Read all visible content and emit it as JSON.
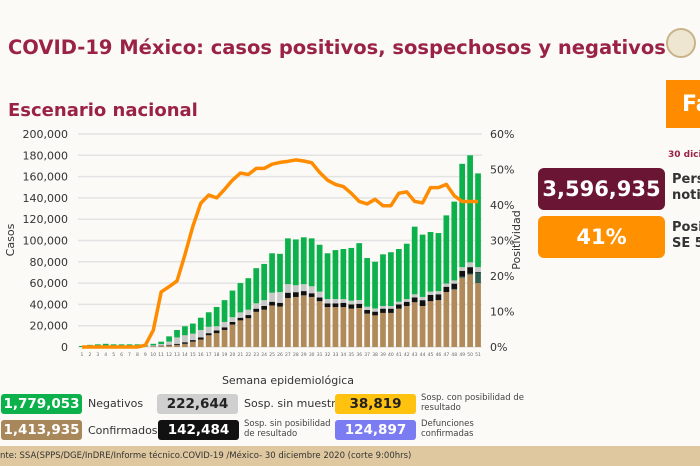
{
  "header": {
    "title": "COVID-19 México: casos positivos, sospechosos y negativos",
    "subtitle": "Escenario nacional",
    "side_box": "Fa",
    "date": "30 dici"
  },
  "kpis": [
    {
      "value": "3,596,935",
      "label1": "Pers",
      "label2": "noti",
      "color": "#6b1535"
    },
    {
      "value": "41%",
      "label1": "Posi",
      "label2": "SE 5",
      "color": "#ff9000"
    }
  ],
  "legend": [
    {
      "value": "1,779,053",
      "label": "Negativos",
      "color": "#0db14b"
    },
    {
      "value": "222,644",
      "label": "Sosp. sin muestra",
      "color": "#cfcfcf"
    },
    {
      "value": "38,819",
      "label": "Sosp. con posibilidad de resultado",
      "color": "#ffc20e"
    },
    {
      "value": "1,413,935",
      "label": "Confirmados",
      "color": "#a8875a"
    },
    {
      "value": "142,484",
      "label": "Sosp. sin posibilidad de resultado",
      "color": "#111111"
    },
    {
      "value": "124,897",
      "label": "Defunciones confirmadas",
      "color": "#7b7cf2"
    }
  ],
  "source": "nte: SSA(SPPS/DGE/InDRE/Informe técnico.COVID-19 /México- 30 diciembre 2020 (corte 9:00hrs)",
  "chart_data": {
    "type": "bar",
    "xlabel": "Semana epidemiológica",
    "ylabel": "Casos",
    "y2label": "Positividad",
    "ylim": [
      0,
      200000
    ],
    "y2lim": [
      0,
      60
    ],
    "yticks": [
      "0",
      "20,000",
      "40,000",
      "60,000",
      "80,000",
      "100,000",
      "120,000",
      "140,000",
      "160,000",
      "180,000",
      "200,000"
    ],
    "y2ticks": [
      "0%",
      "10%",
      "20%",
      "30%",
      "40%",
      "50%",
      "60%"
    ],
    "grid": true,
    "stacked": true,
    "categories": [
      1,
      2,
      3,
      4,
      5,
      6,
      7,
      8,
      9,
      10,
      11,
      12,
      13,
      14,
      15,
      16,
      17,
      18,
      19,
      20,
      21,
      22,
      23,
      24,
      25,
      26,
      27,
      28,
      29,
      30,
      31,
      32,
      33,
      34,
      35,
      36,
      37,
      38,
      39,
      40,
      41,
      42,
      43,
      44,
      45,
      46,
      47,
      48,
      49,
      50,
      51
    ],
    "series": [
      {
        "name": "Confirmados",
        "color": "#b08a5a",
        "values": [
          0,
          0,
          0,
          0,
          0,
          0,
          0,
          0,
          300,
          500,
          1000,
          1500,
          2000,
          3000,
          5000,
          7000,
          11000,
          13000,
          16000,
          21000,
          25000,
          27000,
          33000,
          35000,
          39000,
          38000,
          46000,
          47000,
          48500,
          47000,
          43000,
          37500,
          37500,
          37500,
          36000,
          36600,
          31300,
          29700,
          32000,
          32000,
          36000,
          38500,
          42000,
          38500,
          43000,
          44000,
          51600,
          54000,
          65000,
          68000,
          60000
        ]
      },
      {
        "name": "Sosp. con posibilidad de resultado",
        "color": "#2f5e4f",
        "values": [
          0,
          0,
          0,
          0,
          0,
          0,
          0,
          0,
          0,
          0,
          0,
          0,
          0,
          0,
          0,
          0,
          0,
          0,
          0,
          0,
          0,
          0,
          0,
          0,
          0,
          0,
          0,
          0,
          0,
          0,
          0,
          0,
          0,
          0,
          0,
          0,
          0,
          0,
          0,
          0,
          0,
          0,
          0,
          0,
          0,
          0,
          0,
          500,
          1000,
          1000,
          10000
        ]
      },
      {
        "name": "Sosp. sin posibilidad de resultado",
        "color": "#111111",
        "values": [
          0,
          0,
          0,
          0,
          0,
          0,
          0,
          0,
          0,
          200,
          300,
          600,
          1000,
          1500,
          1500,
          2000,
          2000,
          2500,
          2500,
          2500,
          2500,
          3000,
          3000,
          3500,
          3500,
          3500,
          5000,
          4500,
          4000,
          3500,
          3500,
          3500,
          3500,
          4000,
          4000,
          4000,
          3500,
          3500,
          4000,
          4000,
          4000,
          4000,
          4500,
          5500,
          6000,
          5500,
          5000,
          5000,
          5500,
          6000,
          500
        ]
      },
      {
        "name": "Sosp. sin muestra",
        "color": "#c8c8c8",
        "values": [
          0,
          0,
          0,
          0,
          0,
          0,
          0,
          0,
          300,
          800,
          1500,
          3000,
          6000,
          6500,
          6000,
          7000,
          6000,
          4000,
          5000,
          4500,
          5000,
          5000,
          5000,
          5500,
          8500,
          10000,
          8000,
          6500,
          6500,
          6500,
          5500,
          4000,
          4000,
          3500,
          3500,
          3500,
          3000,
          3000,
          2500,
          2500,
          2500,
          2500,
          3000,
          3000,
          3000,
          3000,
          3000,
          3000,
          3500,
          4500,
          4500
        ]
      },
      {
        "name": "Negativos",
        "color": "#0db14b",
        "values": [
          1000,
          2000,
          2500,
          3000,
          2500,
          2500,
          2500,
          2500,
          900,
          1500,
          2200,
          4900,
          7000,
          8500,
          9500,
          11500,
          13600,
          18100,
          20500,
          25000,
          27500,
          29600,
          33000,
          34000,
          37000,
          36000,
          43000,
          43000,
          44000,
          45000,
          44000,
          43000,
          46000,
          47000,
          49500,
          53400,
          45700,
          43800,
          48500,
          50500,
          49500,
          52000,
          63500,
          58500,
          56000,
          54500,
          64000,
          74000,
          97000,
          100500,
          88000
        ]
      }
    ],
    "positividad": [
      0,
      0,
      0,
      0,
      0,
      0,
      0,
      0,
      0.5,
      4.7,
      15.5,
      17,
      18.6,
      26,
      34,
      40.5,
      42.8,
      42,
      44.4,
      47,
      49,
      48.6,
      50.3,
      50.3,
      51.5,
      52,
      52.3,
      52.7,
      52.4,
      51.9,
      49.2,
      47,
      45.8,
      45.2,
      43.3,
      41,
      40.3,
      41.6,
      39.8,
      39.8,
      43.3,
      43.7,
      41,
      40.6,
      44.9,
      44.9,
      45.8,
      42.6,
      41,
      41,
      41
    ],
    "line_color": "#ff8c00"
  }
}
